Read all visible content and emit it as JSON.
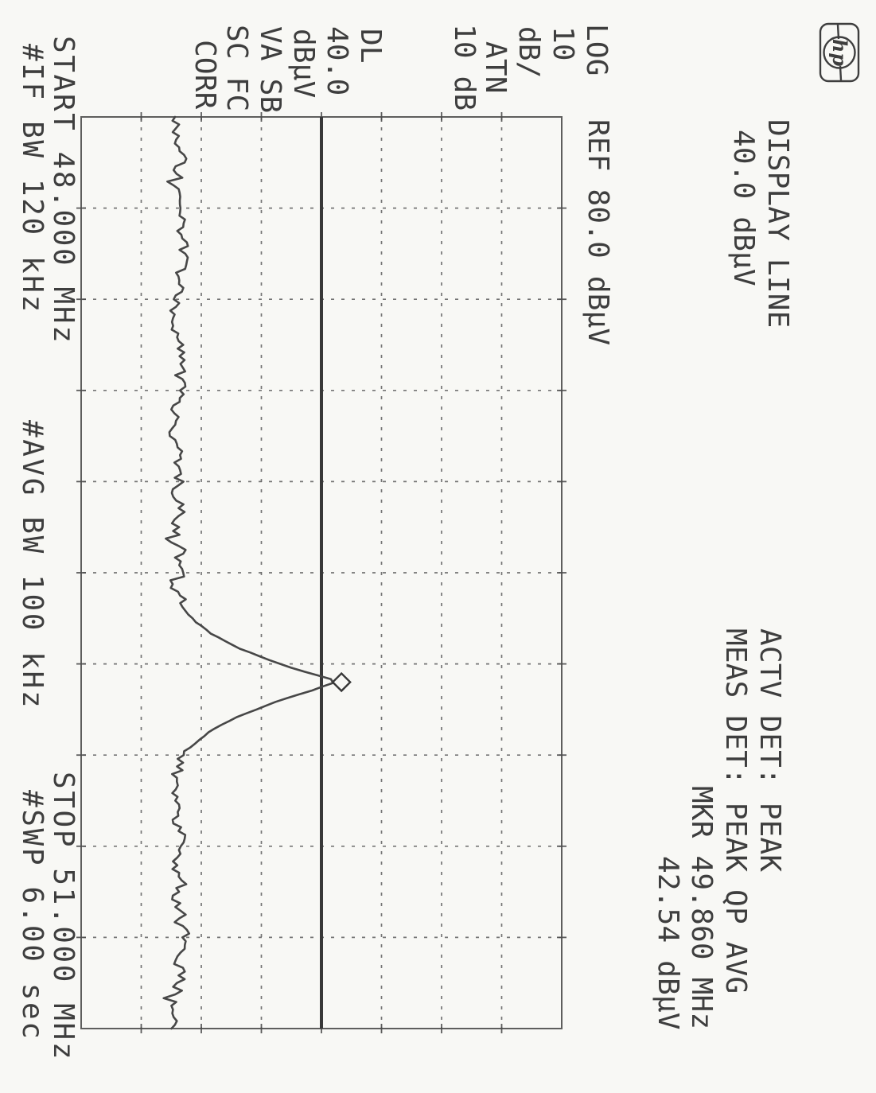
{
  "colors": {
    "ink": "#3e3e3e",
    "grid": "#5f5f5f",
    "trace": "#474747",
    "background": "#f8f8f5"
  },
  "labels": {
    "logo": "hp",
    "display_line_1": "DISPLAY LINE",
    "display_line_2": "40.0 dBμV",
    "actv_det": "ACTV DET: PEAK",
    "meas_det": "MEAS DET: PEAK QP AVG",
    "mkr_freq": "MKR 49.860 MHz",
    "mkr_level": "42.54 dBμV",
    "log": "LOG",
    "log_val": "10",
    "db_per": "dB/",
    "atn": "ATN",
    "atn_val": "10 dB",
    "ref": "REF 80.0 dBμV",
    "dl": "DL",
    "dl_val": "40.0",
    "dl_unit": "dBμV",
    "va_sb": "VA SB",
    "sc_fc": "SC FC",
    "corr": "CORR",
    "start": "START 48.000 MHz",
    "stop": "STOP 51.000 MHz",
    "if_bw": "#IF BW 120 kHz",
    "avg_bw": "#AVG BW 100 kHz",
    "sweep": "#SWP 6.00 sec"
  },
  "chart_data": {
    "type": "line",
    "title": "",
    "x_axis": {
      "start_mhz": 48.0,
      "stop_mhz": 51.0,
      "divisions": 10,
      "label_start": "START 48.000 MHz",
      "label_stop": "STOP 51.000 MHz",
      "unit": "MHz"
    },
    "y_axis": {
      "ref_dbuv": 80.0,
      "db_per_div": 10,
      "divisions": 8,
      "top_dbuv": 80,
      "bottom_dbuv": 0,
      "label_ref": "REF 80.0 dBμV",
      "scale": "LOG 10 dB/",
      "unit": "dBμV"
    },
    "attenuation": "ATN 10 dB",
    "display_line_dbuv": 40.0,
    "marker": {
      "freq_mhz": 49.86,
      "level_dbuv": 42.54,
      "label": "MKR 49.860 MHz",
      "value_label": "42.54 dBμV"
    },
    "detectors": {
      "active": "PEAK",
      "measure": "PEAK QP AVG"
    },
    "if_bandwidth_khz": 120,
    "avg_bandwidth_khz": 100,
    "sweep_time_sec": 6.0,
    "noise_floor_dbuv": 16.3,
    "noise_jitter_db": 1.3,
    "seed": 9,
    "trace_anchors_mhz_dbuv": [
      [
        48.0,
        16.3
      ],
      [
        49.6,
        16.3
      ],
      [
        49.66,
        19.0
      ],
      [
        49.7,
        21.5
      ],
      [
        49.75,
        26.5
      ],
      [
        49.8,
        33.0
      ],
      [
        49.83,
        38.0
      ],
      [
        49.857,
        42.9
      ],
      [
        49.89,
        38.0
      ],
      [
        49.92,
        33.0
      ],
      [
        49.97,
        26.5
      ],
      [
        50.02,
        21.5
      ],
      [
        50.06,
        19.0
      ],
      [
        50.1,
        16.3
      ],
      [
        51.0,
        16.3
      ]
    ],
    "grid": true,
    "legend": false
  }
}
